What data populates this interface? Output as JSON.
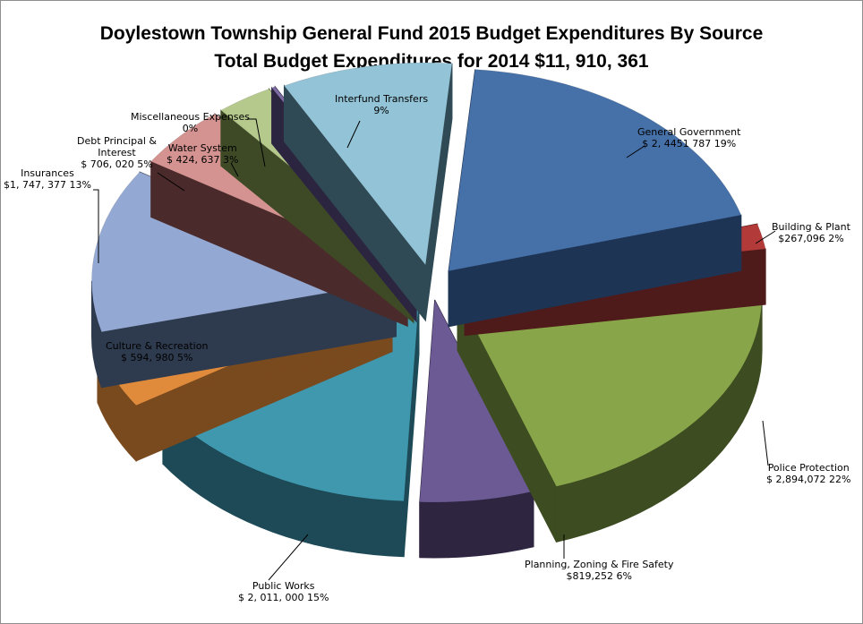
{
  "window": {
    "title": "Doylestown Township General Fund 2015 Budget Expenditures By Source"
  },
  "chart_data": {
    "type": "pie",
    "style": "3d-exploded",
    "title": "Doylestown Township General Fund 2015 Budget Expenditures By Source",
    "subtitle": "Total Budget Expenditures for 2014  $11, 910, 361",
    "slices": [
      {
        "name": "General Government",
        "value_text": "$ 2, 4451 787",
        "percent": 19,
        "pct_text": "19%",
        "color": "#4670a8",
        "side": "#1e3455"
      },
      {
        "name": "Building & Plant",
        "value_text": "$267,096",
        "percent": 2,
        "pct_text": "2%",
        "color": "#b23a38",
        "side": "#4f1a1a"
      },
      {
        "name": "Police Protection",
        "value_text": "$ 2,894,072",
        "percent": 22,
        "pct_text": "22%",
        "color": "#88a54a",
        "side": "#3d4c21"
      },
      {
        "name": "Planning, Zoning & Fire Safety",
        "value_text": "$819,252",
        "percent": 6,
        "pct_text": "6%",
        "color": "#6c5a94",
        "side": "#2e2541"
      },
      {
        "name": "Public Works",
        "value_text": "$ 2, 011, 000",
        "percent": 15,
        "pct_text": "15%",
        "color": "#3f98ae",
        "side": "#1d4a56"
      },
      {
        "name": "Culture & Recreation",
        "value_text": "$ 594, 980",
        "percent": 5,
        "pct_text": "5%",
        "color": "#e08a3c",
        "side": "#7a4a1f"
      },
      {
        "name": "Insurances",
        "value_text": "$1, 747, 377",
        "percent": 13,
        "pct_text": "13%",
        "color": "#93a8d2",
        "side": "#2e3a4e"
      },
      {
        "name": "Debt Principal & Interest",
        "value_text": "$ 706, 020",
        "percent": 5,
        "pct_text": "5%",
        "color": "#d49390",
        "side": "#4a2a2a"
      },
      {
        "name": "Water System",
        "value_text": "$ 424, 637",
        "percent": 3,
        "pct_text": "3%",
        "color": "#b5c98c",
        "side": "#3e4a26"
      },
      {
        "name": "Miscellaneous Expenses",
        "value_text": "",
        "percent": 0,
        "pct_text": "0%",
        "color": "#7d6ba3",
        "side": "#2c2540"
      },
      {
        "name": "Interfund Transfers",
        "value_text": "",
        "percent": 9,
        "pct_text": "9%",
        "color": "#93c3d6",
        "side": "#2f4a55"
      }
    ]
  }
}
